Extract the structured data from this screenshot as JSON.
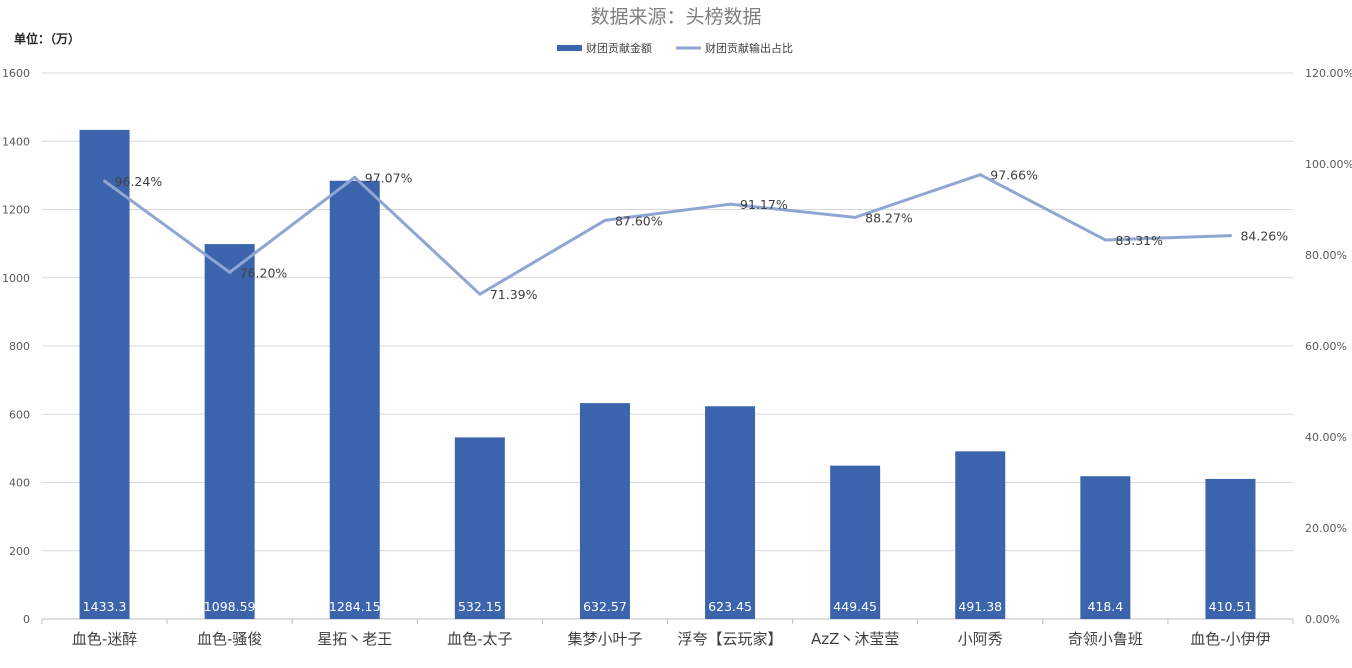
{
  "chart_data": {
    "type": "bar",
    "title": "数据来源：头榜数据",
    "unit_label": "单位：（万）",
    "legend_position": "top",
    "grid": true,
    "categories": [
      "血色-迷醉",
      "血色-骚俊",
      "星拓丶老王",
      "血色-太子",
      "集梦小叶子",
      "浮夸【云玩家】",
      "AzZ丶沐莹莹",
      "小阿秀",
      "奇领小鲁班",
      "血色-小伊伊"
    ],
    "series": [
      {
        "name": "财团贡献金额",
        "type": "bar",
        "axis": "left",
        "color": "#3c64ad",
        "values": [
          1433.3,
          1098.59,
          1284.15,
          532.15,
          632.57,
          623.45,
          449.45,
          491.38,
          418.4,
          410.51
        ],
        "labels": [
          "1433.3",
          "1098.59",
          "1284.15",
          "532.15",
          "632.57",
          "623.45",
          "449.45",
          "491.38",
          "418.4",
          "410.51"
        ]
      },
      {
        "name": "财团贡献输出占比",
        "type": "line",
        "axis": "right",
        "color": "#8fa6d2",
        "values": [
          96.24,
          76.2,
          97.07,
          71.39,
          87.6,
          91.17,
          88.27,
          97.66,
          83.31,
          84.26
        ],
        "labels": [
          "96.24%",
          "76.20%",
          "97.07%",
          "71.39%",
          "87.60%",
          "91.17%",
          "88.27%",
          "97.66%",
          "83.31%",
          "84.26%"
        ]
      }
    ],
    "y_left": {
      "min": 0,
      "max": 1600,
      "ticks": [
        "0",
        "200",
        "400",
        "600",
        "800",
        "1000",
        "1200",
        "1400",
        "1600"
      ]
    },
    "y_right": {
      "min": 0,
      "max": 120,
      "ticks": [
        "0.00%",
        "20.00%",
        "40.00%",
        "60.00%",
        "80.00%",
        "100.00%",
        "120.00%"
      ]
    }
  }
}
